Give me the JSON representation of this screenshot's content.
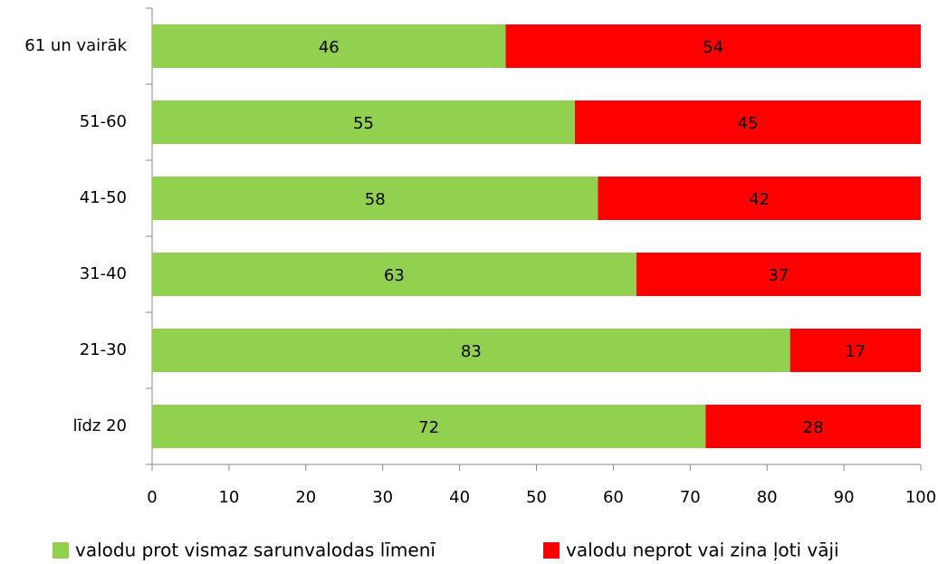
{
  "chart_data": {
    "type": "stacked-bar-horizontal",
    "categories": [
      "61 un vairāk",
      "51-60",
      "41-50",
      "31-40",
      "21-30",
      "līdz 20"
    ],
    "series": [
      {
        "name": "valodu prot vismaz sarunvalodas līmenī",
        "color": "#92d050",
        "values": [
          46,
          55,
          58,
          63,
          83,
          72
        ]
      },
      {
        "name": "valodu neprot vai zina ļoti vāji",
        "color": "#ff0000",
        "values": [
          54,
          45,
          42,
          37,
          17,
          28
        ]
      }
    ],
    "xlim": [
      0,
      100
    ],
    "xticks": [
      0,
      10,
      20,
      30,
      40,
      50,
      60,
      70,
      80,
      90,
      100
    ],
    "legend": "bottom"
  }
}
